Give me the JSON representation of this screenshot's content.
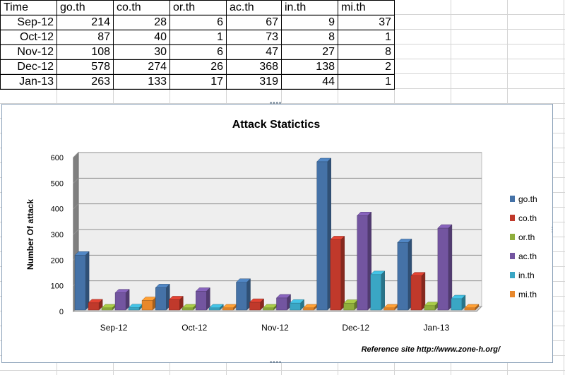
{
  "sheet": {
    "headers": [
      "Time",
      "go.th",
      "co.th",
      "or.th",
      "ac.th",
      "in.th",
      "mi.th"
    ],
    "rows": [
      {
        "time": "Sep-12",
        "values": [
          214,
          28,
          6,
          67,
          9,
          37
        ]
      },
      {
        "time": "Oct-12",
        "values": [
          87,
          40,
          1,
          73,
          8,
          1
        ]
      },
      {
        "time": "Nov-12",
        "values": [
          108,
          30,
          6,
          47,
          27,
          8
        ]
      },
      {
        "time": "Dec-12",
        "values": [
          578,
          274,
          26,
          368,
          138,
          2
        ]
      },
      {
        "time": "Jan-13",
        "values": [
          263,
          133,
          17,
          319,
          44,
          1
        ]
      }
    ]
  },
  "chart_data": {
    "type": "bar",
    "title": "Attack Statictics",
    "xlabel": "",
    "ylabel": "Number Of attack",
    "annotation": "Reference site http://www.zone-h.org/",
    "categories": [
      "Sep-12",
      "Oct-12",
      "Nov-12",
      "Dec-12",
      "Jan-13"
    ],
    "ylim": [
      0,
      600
    ],
    "yticks": [
      0,
      100,
      200,
      300,
      400,
      500,
      600
    ],
    "grid": true,
    "legend_position": "right",
    "style": "3d-clustered-column",
    "series": [
      {
        "name": "go.th",
        "color": "#4572a7",
        "values": [
          214,
          87,
          108,
          578,
          263
        ]
      },
      {
        "name": "co.th",
        "color": "#c0392b",
        "values": [
          28,
          40,
          30,
          274,
          133
        ]
      },
      {
        "name": "or.th",
        "color": "#8fae3c",
        "values": [
          6,
          1,
          6,
          26,
          17
        ]
      },
      {
        "name": "ac.th",
        "color": "#7355a0",
        "values": [
          67,
          73,
          47,
          368,
          319
        ]
      },
      {
        "name": "in.th",
        "color": "#3aa6c4",
        "values": [
          9,
          8,
          27,
          138,
          44
        ]
      },
      {
        "name": "mi.th",
        "color": "#e8882c",
        "values": [
          37,
          1,
          8,
          2,
          1
        ]
      }
    ]
  }
}
